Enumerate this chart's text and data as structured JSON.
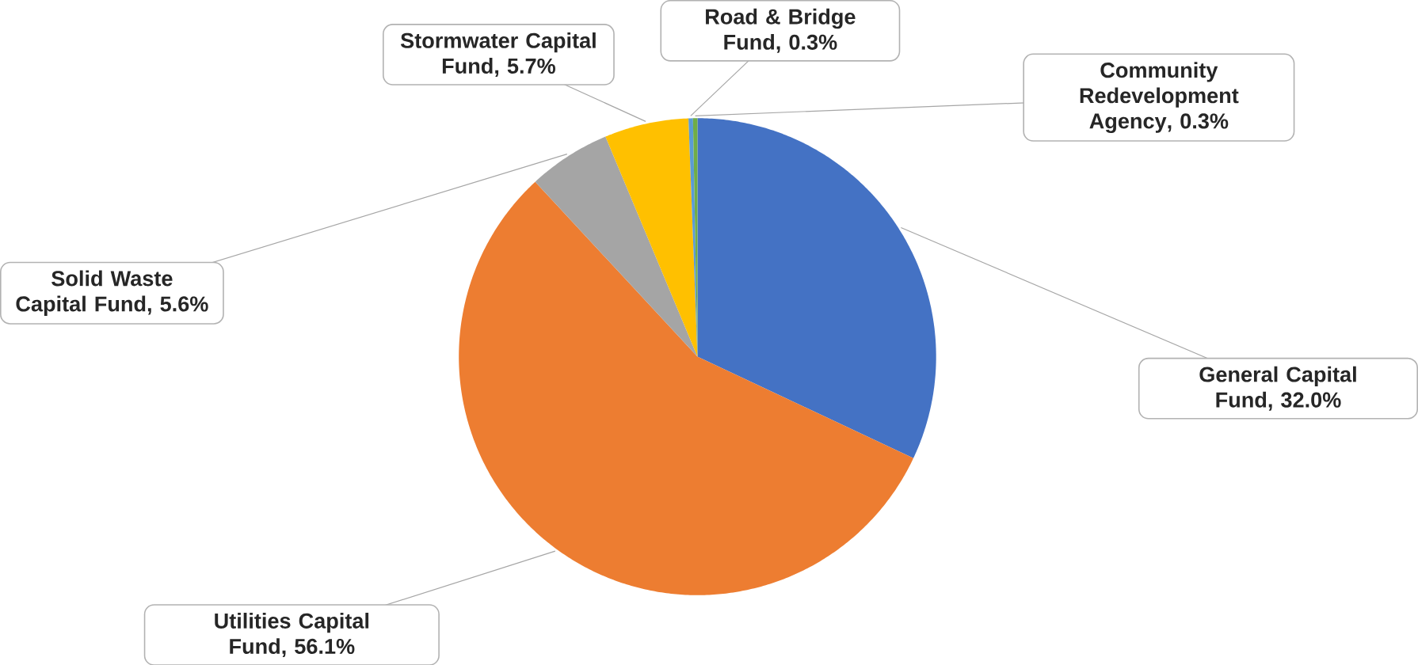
{
  "chart_data": {
    "type": "pie",
    "categories": [
      "General Capital Fund",
      "Utilities Capital Fund",
      "Solid Waste Capital Fund",
      "Stormwater Capital Fund",
      "Road & Bridge Fund",
      "Community Redevelopment Agency"
    ],
    "values": [
      32.0,
      56.1,
      5.6,
      5.7,
      0.3,
      0.3
    ],
    "colors": [
      "#4472c4",
      "#ed7d31",
      "#a5a5a5",
      "#ffc000",
      "#5b9bd5",
      "#70ad47"
    ],
    "value_labels": [
      ", 32.0%",
      ", 56.1%",
      ", 5.6%",
      ", 5.7%",
      ", 0.3%",
      ", 0.3%"
    ]
  }
}
